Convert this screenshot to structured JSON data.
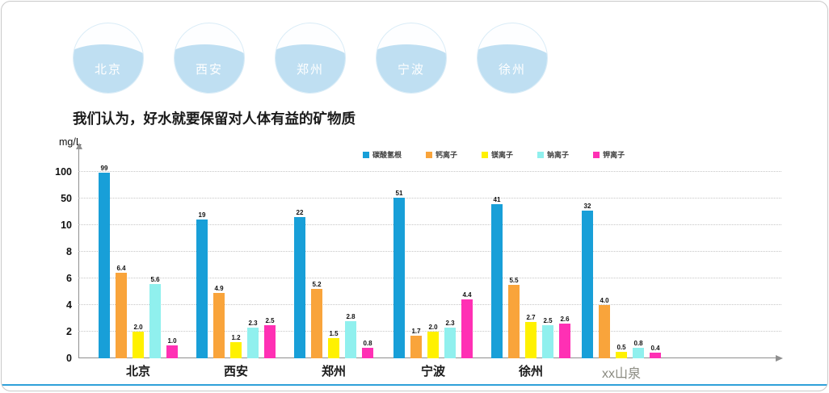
{
  "badges": [
    {
      "label": "北京"
    },
    {
      "label": "西安"
    },
    {
      "label": "郑州"
    },
    {
      "label": "宁波"
    },
    {
      "label": "徐州"
    }
  ],
  "headline": "我们认为，好水就要保留对人体有益的矿物质",
  "chart_data": {
    "type": "bar",
    "title": "",
    "ylabel": "mg/L",
    "xlabel": "",
    "grid": "dotted",
    "legend_position": "top",
    "y_ticks": [
      0,
      2,
      4,
      6,
      8,
      10,
      50,
      100
    ],
    "categories": [
      "北京",
      "西安",
      "郑州",
      "宁波",
      "徐州",
      "xx山泉"
    ],
    "series": [
      {
        "name": "碳酸氢根",
        "color": "#189fd8",
        "values": [
          99,
          19,
          22,
          51,
          41,
          32
        ]
      },
      {
        "name": "钙离子",
        "color": "#f9a43b",
        "values": [
          6.4,
          4.9,
          5.2,
          1.7,
          5.5,
          4.0
        ]
      },
      {
        "name": "镁离子",
        "color": "#fff100",
        "values": [
          2.0,
          1.2,
          1.5,
          2.0,
          2.7,
          0.5
        ]
      },
      {
        "name": "钠离子",
        "color": "#90f0ee",
        "values": [
          5.6,
          2.3,
          2.8,
          2.3,
          2.5,
          0.8
        ]
      },
      {
        "name": "钾离子",
        "color": "#ff30b4",
        "values": [
          1.0,
          2.5,
          0.8,
          4.4,
          2.6,
          0.4
        ]
      }
    ]
  }
}
